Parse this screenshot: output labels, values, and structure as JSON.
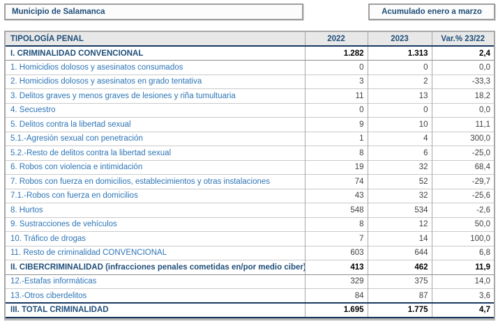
{
  "header": {
    "municipality_label": "Municipio de Salamanca",
    "period_label": "Acumulado enero a marzo"
  },
  "colors": {
    "accent_navy": "#1F4E79",
    "accent_blue": "#2E75B6",
    "header_row_bg": "#E8E8E8",
    "frame_gray": "#A6A6A6",
    "dark_rule": "#17375E"
  },
  "table": {
    "columns": [
      "TIPOLOGÍA PENAL",
      "2022",
      "2023",
      "Var.% 23/22"
    ],
    "rows": [
      {
        "style": "section",
        "label": "I. CRIMINALIDAD CONVENCIONAL",
        "y2022": "1.282",
        "y2023": "1.313",
        "var": "2,4"
      },
      {
        "style": "row",
        "label": "1. Homicidios dolosos y asesinatos consumados",
        "y2022": "0",
        "y2023": "0",
        "var": "0,0"
      },
      {
        "style": "row",
        "label": "2. Homicidios dolosos y asesinatos en grado tentativa",
        "y2022": "3",
        "y2023": "2",
        "var": "-33,3"
      },
      {
        "style": "row",
        "label": "3. Delitos graves y menos graves de lesiones y riña tumultuaria",
        "y2022": "11",
        "y2023": "13",
        "var": "18,2"
      },
      {
        "style": "row",
        "label": "4. Secuestro",
        "y2022": "0",
        "y2023": "0",
        "var": "0,0"
      },
      {
        "style": "row",
        "label": "5. Delitos contra la libertad sexual",
        "y2022": "9",
        "y2023": "10",
        "var": "11,1"
      },
      {
        "style": "row",
        "label": "5.1.-Agresión sexual con penetración",
        "y2022": "1",
        "y2023": "4",
        "var": "300,0"
      },
      {
        "style": "row",
        "label": "5.2.-Resto de delitos contra la libertad sexual",
        "y2022": "8",
        "y2023": "6",
        "var": "-25,0"
      },
      {
        "style": "row",
        "label": "6. Robos con violencia e intimidación",
        "y2022": "19",
        "y2023": "32",
        "var": "68,4"
      },
      {
        "style": "row",
        "label": "7. Robos con fuerza en domicilios, establecimientos y otras instalaciones",
        "y2022": "74",
        "y2023": "52",
        "var": "-29,7"
      },
      {
        "style": "row",
        "label": "7.1.-Robos con fuerza en domicilios",
        "y2022": "43",
        "y2023": "32",
        "var": "-25,6"
      },
      {
        "style": "row",
        "label": "8. Hurtos",
        "y2022": "548",
        "y2023": "534",
        "var": "-2,6"
      },
      {
        "style": "row",
        "label": "9. Sustracciones de vehículos",
        "y2022": "8",
        "y2023": "12",
        "var": "50,0"
      },
      {
        "style": "row",
        "label": "10. Tráfico de drogas",
        "y2022": "7",
        "y2023": "14",
        "var": "100,0"
      },
      {
        "style": "row",
        "label": "11. Resto de criminalidad CONVENCIONAL",
        "y2022": "603",
        "y2023": "644",
        "var": "6,8"
      },
      {
        "style": "section",
        "label": "II. CIBERCRIMINALIDAD (infracciones penales cometidas en/por medio ciber)",
        "y2022": "413",
        "y2023": "462",
        "var": "11,9"
      },
      {
        "style": "row",
        "label": "12.-Estafas informáticas",
        "y2022": "329",
        "y2023": "375",
        "var": "14,0"
      },
      {
        "style": "row",
        "label": "13.-Otros ciberdelitos",
        "y2022": "84",
        "y2023": "87",
        "var": "3,6"
      },
      {
        "style": "total",
        "label": "III. TOTAL CRIMINALIDAD",
        "y2022": "1.695",
        "y2023": "1.775",
        "var": "4,7"
      }
    ]
  }
}
